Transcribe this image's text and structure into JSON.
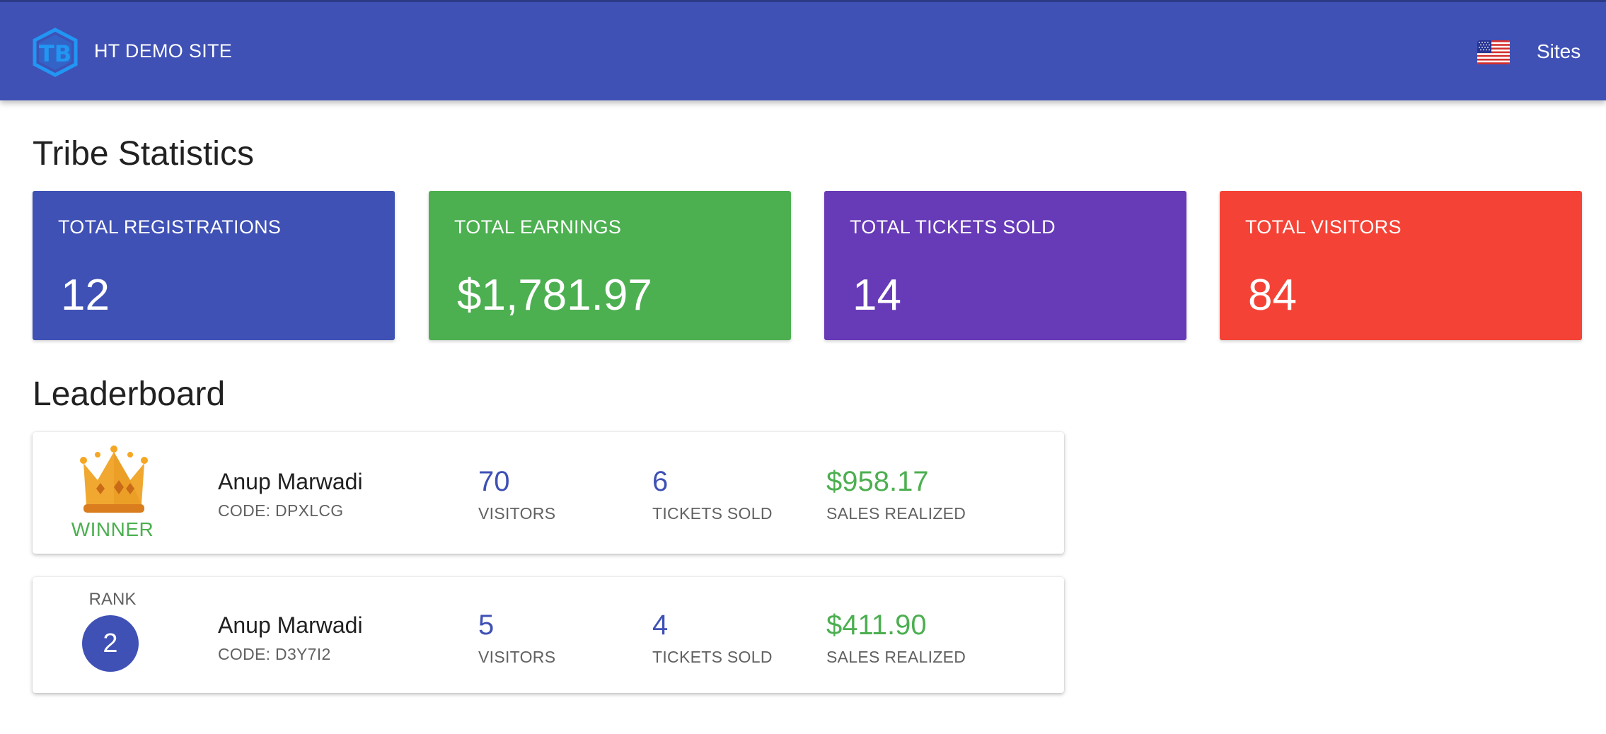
{
  "header": {
    "site_name": "HT DEMO SITE",
    "logo_icon": "tb-logo-icon",
    "flag_icon": "us-flag-icon",
    "sites_label": "Sites",
    "background": "#3f51b5"
  },
  "stats": {
    "title": "Tribe Statistics",
    "cards": [
      {
        "label": "TOTAL REGISTRATIONS",
        "value": "12",
        "color": "#3f51b5"
      },
      {
        "label": "TOTAL EARNINGS",
        "value": "$1,781.97",
        "color": "#4caf50"
      },
      {
        "label": "TOTAL TICKETS SOLD",
        "value": "14",
        "color": "#673ab7"
      },
      {
        "label": "TOTAL VISITORS",
        "value": "84",
        "color": "#f44336"
      }
    ]
  },
  "leaderboard": {
    "title": "Leaderboard",
    "entries": [
      {
        "badge": "WINNER",
        "badge_icon": "crown-icon",
        "name": "Anup Marwadi",
        "code": "CODE: DPXLCG",
        "visitors": "70",
        "visitors_label": "VISITORS",
        "tickets": "6",
        "tickets_label": "TICKETS SOLD",
        "sales": "$958.17",
        "sales_label": "SALES REALIZED"
      },
      {
        "rank_label": "RANK",
        "rank": "2",
        "name": "Anup Marwadi",
        "code": "CODE: D3Y7I2",
        "visitors": "5",
        "visitors_label": "VISITORS",
        "tickets": "4",
        "tickets_label": "TICKETS SOLD",
        "sales": "$411.90",
        "sales_label": "SALES REALIZED"
      }
    ]
  }
}
